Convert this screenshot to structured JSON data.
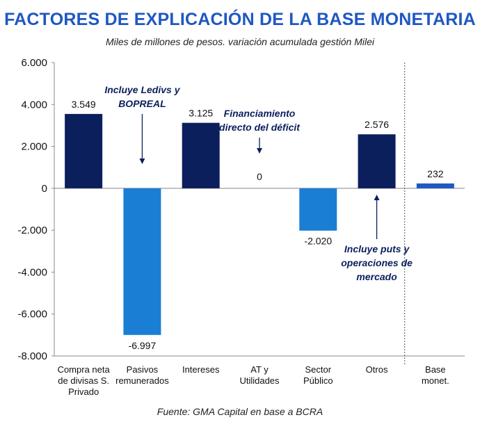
{
  "title": "FACTORES DE EXPLICACIÓN DE LA BASE MONETARIA",
  "subtitle": "Miles de millones de pesos. variación acumulada gestión Milei",
  "source": "Fuente: GMA Capital en base a BCRA",
  "chart_data": {
    "type": "bar",
    "categories": [
      [
        "Compra neta",
        "de divisas S.",
        "Privado"
      ],
      [
        "Pasivos",
        "remunerados"
      ],
      [
        "Intereses"
      ],
      [
        "AT y",
        "Utilidades"
      ],
      [
        "Sector",
        "Público"
      ],
      [
        "Otros"
      ],
      [
        "Base",
        "monet."
      ]
    ],
    "values": [
      3549,
      -6997,
      3125,
      0,
      -2020,
      2576,
      232
    ],
    "value_labels": [
      "3.549",
      "-6.997",
      "3.125",
      "0",
      "-2.020",
      "2.576",
      "232"
    ],
    "colors": [
      "#0b1f5c",
      "#1a7fd4",
      "#0b1f5c",
      "#0b1f5c",
      "#1a7fd4",
      "#0b1f5c",
      "#1f57c3"
    ],
    "ylim": [
      -8000,
      6000
    ],
    "yticks": [
      6000,
      4000,
      2000,
      0,
      -2000,
      -4000,
      -6000,
      -8000
    ],
    "ytick_labels": [
      "6.000",
      "4.000",
      "2.000",
      "0",
      "-2.000",
      "-4.000",
      "-6.000",
      "-8.000"
    ],
    "separator_after_index": 5,
    "annotations": [
      {
        "category_index": 1,
        "lines": [
          "Incluye Ledivs y",
          "BOPREAL"
        ],
        "arrow": "down"
      },
      {
        "category_index": 3,
        "lines": [
          "Financiamiento",
          "directo del déficit"
        ],
        "arrow": "down"
      },
      {
        "category_index": 5,
        "lines": [
          "Incluye puts y",
          "operaciones de",
          "mercado"
        ],
        "arrow": "up"
      }
    ]
  }
}
